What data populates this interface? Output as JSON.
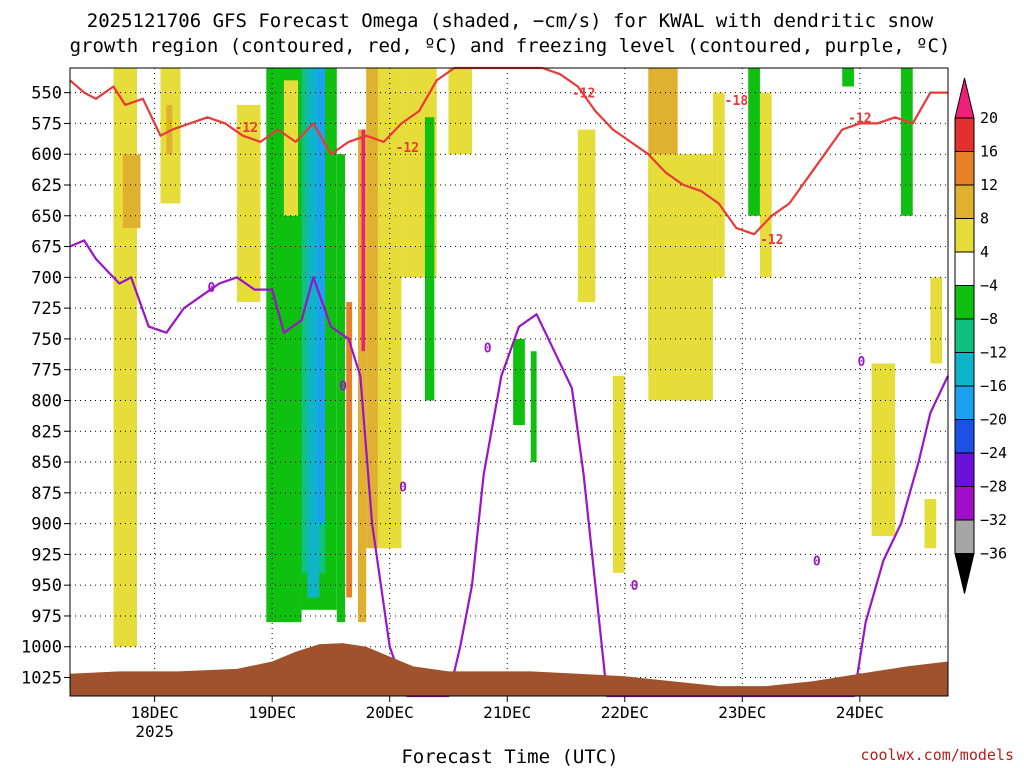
{
  "chart_data": {
    "type": "heatmap",
    "title_line1": "2025121706 GFS Forecast Omega (shaded, −cm/s) for KWAL with dendritic snow",
    "title_line2": "growth region (contoured, red, ºC) and freezing level (contoured, purple, ºC)",
    "xlabel": "Forecast Time (UTC)",
    "watermark": "coolwx.com/models",
    "x_axis": {
      "unit": "days since 2025-12-18 00Z",
      "range": [
        -0.72,
        6.75
      ],
      "ticks": [
        {
          "x": 0,
          "label": "18DEC",
          "sublabel": "2025"
        },
        {
          "x": 1,
          "label": "19DEC",
          "sublabel": ""
        },
        {
          "x": 2,
          "label": "20DEC",
          "sublabel": ""
        },
        {
          "x": 3,
          "label": "21DEC",
          "sublabel": ""
        },
        {
          "x": 4,
          "label": "22DEC",
          "sublabel": ""
        },
        {
          "x": 5,
          "label": "23DEC",
          "sublabel": ""
        },
        {
          "x": 6,
          "label": "24DEC",
          "sublabel": ""
        }
      ]
    },
    "y_axis": {
      "unit": "hPa",
      "range": [
        530,
        1040
      ],
      "ticks": [
        550,
        575,
        600,
        625,
        650,
        675,
        700,
        725,
        750,
        775,
        800,
        825,
        850,
        875,
        900,
        925,
        950,
        975,
        1000,
        1025
      ]
    },
    "colorbar": {
      "labels": [
        "20",
        "16",
        "12",
        "8",
        "4",
        "−4",
        "−8",
        "−12",
        "−16",
        "−20",
        "−24",
        "−28",
        "−32",
        "−36"
      ],
      "colors": [
        "#f0207a",
        "#e03030",
        "#e8802a",
        "#e0b030",
        "#e6dc3a",
        "#ffffff",
        "#10c010",
        "#10c080",
        "#10b4c8",
        "#1ca0f0",
        "#1e50e6",
        "#6a10d8",
        "#a010c8",
        "#a6a6a6",
        "#000000"
      ]
    },
    "shaded_regions": [
      {
        "x": [
          -0.35,
          -0.15
        ],
        "p": [
          530,
          1000
        ],
        "level": "4"
      },
      {
        "x": [
          -0.27,
          -0.12
        ],
        "p": [
          600,
          660
        ],
        "level": "8"
      },
      {
        "x": [
          0.05,
          0.22
        ],
        "p": [
          530,
          640
        ],
        "level": "4"
      },
      {
        "x": [
          0.1,
          0.15
        ],
        "p": [
          560,
          600
        ],
        "level": "8"
      },
      {
        "x": [
          0.7,
          0.9
        ],
        "p": [
          560,
          720
        ],
        "level": "4"
      },
      {
        "x": [
          0.95,
          1.25
        ],
        "p": [
          530,
          980
        ],
        "level": "-8"
      },
      {
        "x": [
          1.1,
          1.22
        ],
        "p": [
          540,
          650
        ],
        "level": "4"
      },
      {
        "x": [
          1.25,
          1.55
        ],
        "p": [
          530,
          970
        ],
        "level": "-8"
      },
      {
        "x": [
          1.25,
          1.45
        ],
        "p": [
          530,
          940
        ],
        "level": "-12"
      },
      {
        "x": [
          1.3,
          1.4
        ],
        "p": [
          530,
          960
        ],
        "level": "-16"
      },
      {
        "x": [
          1.38,
          1.45
        ],
        "p": [
          530,
          900
        ],
        "level": "-20"
      },
      {
        "x": [
          1.55,
          1.62
        ],
        "p": [
          600,
          980
        ],
        "level": "-8"
      },
      {
        "x": [
          1.63,
          1.68
        ],
        "p": [
          720,
          960
        ],
        "level": "12"
      },
      {
        "x": [
          1.73,
          1.8
        ],
        "p": [
          580,
          980
        ],
        "level": "8"
      },
      {
        "x": [
          1.76,
          1.79
        ],
        "p": [
          580,
          760
        ],
        "level": "20"
      },
      {
        "x": [
          1.8,
          1.9
        ],
        "p": [
          530,
          920
        ],
        "level": "8"
      },
      {
        "x": [
          1.9,
          2.1
        ],
        "p": [
          530,
          920
        ],
        "level": "4"
      },
      {
        "x": [
          2.1,
          2.4
        ],
        "p": [
          530,
          700
        ],
        "level": "4"
      },
      {
        "x": [
          2.3,
          2.38
        ],
        "p": [
          570,
          800
        ],
        "level": "-8"
      },
      {
        "x": [
          2.5,
          2.7
        ],
        "p": [
          530,
          600
        ],
        "level": "4"
      },
      {
        "x": [
          3.05,
          3.15
        ],
        "p": [
          750,
          820
        ],
        "level": "-8"
      },
      {
        "x": [
          3.2,
          3.25
        ],
        "p": [
          760,
          850
        ],
        "level": "-8"
      },
      {
        "x": [
          3.6,
          3.75
        ],
        "p": [
          580,
          720
        ],
        "level": "4"
      },
      {
        "x": [
          3.9,
          4.0
        ],
        "p": [
          780,
          940
        ],
        "level": "4"
      },
      {
        "x": [
          4.2,
          4.45
        ],
        "p": [
          530,
          780
        ],
        "level": "8"
      },
      {
        "x": [
          4.2,
          4.75
        ],
        "p": [
          600,
          800
        ],
        "level": "4"
      },
      {
        "x": [
          4.4,
          4.65
        ],
        "p": [
          690,
          800
        ],
        "level": "4"
      },
      {
        "x": [
          4.75,
          4.85
        ],
        "p": [
          550,
          700
        ],
        "level": "4"
      },
      {
        "x": [
          5.05,
          5.15
        ],
        "p": [
          530,
          650
        ],
        "level": "-8"
      },
      {
        "x": [
          5.15,
          5.25
        ],
        "p": [
          550,
          700
        ],
        "level": "4"
      },
      {
        "x": [
          5.85,
          5.95
        ],
        "p": [
          530,
          545
        ],
        "level": "-8"
      },
      {
        "x": [
          6.1,
          6.3
        ],
        "p": [
          770,
          910
        ],
        "level": "4"
      },
      {
        "x": [
          6.35,
          6.45
        ],
        "p": [
          530,
          650
        ],
        "level": "-8"
      },
      {
        "x": [
          6.6,
          6.7
        ],
        "p": [
          700,
          770
        ],
        "level": "4"
      },
      {
        "x": [
          6.55,
          6.65
        ],
        "p": [
          880,
          920
        ],
        "level": "4"
      }
    ],
    "red_contour_dgz": {
      "label": "-12",
      "x": [
        -0.72,
        -0.6,
        -0.5,
        -0.35,
        -0.25,
        -0.1,
        0.05,
        0.15,
        0.3,
        0.45,
        0.6,
        0.75,
        0.9,
        1.05,
        1.2,
        1.35,
        1.5,
        1.65,
        1.8,
        1.95,
        2.1,
        2.25,
        2.4,
        2.55,
        2.7,
        2.85,
        3.0,
        3.15,
        3.3,
        3.45,
        3.6,
        3.75,
        3.9,
        4.05,
        4.2,
        4.35,
        4.5,
        4.65,
        4.8,
        4.95,
        5.1,
        5.25,
        5.4,
        5.55,
        5.7,
        5.85,
        6.0,
        6.15,
        6.3,
        6.45,
        6.6,
        6.75
      ],
      "p": [
        540,
        550,
        555,
        545,
        560,
        555,
        585,
        580,
        575,
        570,
        575,
        585,
        590,
        580,
        590,
        575,
        600,
        590,
        585,
        590,
        575,
        565,
        540,
        530,
        530,
        530,
        530,
        530,
        530,
        535,
        545,
        565,
        580,
        590,
        600,
        615,
        625,
        630,
        640,
        660,
        665,
        650,
        640,
        620,
        600,
        580,
        575,
        575,
        570,
        575,
        550,
        550
      ],
      "labels_at": [
        {
          "x": 0.68,
          "p": 578,
          "text": "-12"
        },
        {
          "x": 2.05,
          "p": 594,
          "text": "-12"
        },
        {
          "x": 3.55,
          "p": 550,
          "text": "-12"
        },
        {
          "x": 4.85,
          "p": 556,
          "text": "-18"
        },
        {
          "x": 5.15,
          "p": 669,
          "text": "-12"
        },
        {
          "x": 5.9,
          "p": 570,
          "text": "-12"
        }
      ]
    },
    "purple_contour_freezing": {
      "label": "0",
      "x": [
        -0.72,
        -0.6,
        -0.5,
        -0.4,
        -0.3,
        -0.2,
        -0.05,
        0.1,
        0.25,
        0.4,
        0.55,
        0.7,
        0.85,
        1.0,
        1.1,
        1.25,
        1.35,
        1.5,
        1.65,
        1.75,
        1.85,
        2.0,
        2.15,
        2.3,
        2.4,
        2.5,
        2.6,
        2.7,
        2.8,
        2.95,
        3.1,
        3.25,
        3.4,
        3.55,
        3.65,
        3.75,
        3.85,
        3.95,
        4.1,
        4.25,
        4.4,
        4.55,
        4.7,
        4.85,
        5.0,
        5.15,
        5.3,
        5.45,
        5.6,
        5.75,
        5.85,
        5.95,
        6.05,
        6.2,
        6.35,
        6.5,
        6.6,
        6.75
      ],
      "p": [
        675,
        670,
        685,
        695,
        705,
        700,
        740,
        745,
        725,
        715,
        705,
        700,
        710,
        710,
        745,
        735,
        700,
        740,
        750,
        780,
        900,
        1000,
        1040,
        1040,
        1040,
        1040,
        1000,
        950,
        860,
        780,
        740,
        730,
        760,
        790,
        860,
        950,
        1040,
        1040,
        1040,
        1040,
        1040,
        1040,
        1040,
        1040,
        1040,
        1040,
        1040,
        1040,
        1040,
        1040,
        1040,
        1040,
        980,
        930,
        900,
        850,
        810,
        780
      ],
      "labels_at": [
        {
          "x": 0.45,
          "p": 708,
          "text": "0"
        },
        {
          "x": 1.57,
          "p": 788,
          "text": "0"
        },
        {
          "x": 2.08,
          "p": 870,
          "text": "0"
        },
        {
          "x": 2.8,
          "p": 757,
          "text": "0"
        },
        {
          "x": 4.05,
          "p": 950,
          "text": "0"
        },
        {
          "x": 5.6,
          "p": 930,
          "text": "0"
        },
        {
          "x": 5.98,
          "p": 768,
          "text": "0"
        }
      ]
    },
    "terrain": {
      "x": [
        -0.72,
        -0.3,
        0.2,
        0.7,
        1.0,
        1.2,
        1.4,
        1.6,
        1.8,
        2.0,
        2.2,
        2.5,
        2.8,
        3.2,
        3.6,
        4.0,
        4.4,
        4.8,
        5.2,
        5.6,
        6.0,
        6.4,
        6.75
      ],
      "p": [
        1022,
        1020,
        1020,
        1018,
        1012,
        1004,
        998,
        997,
        1000,
        1008,
        1016,
        1020,
        1020,
        1020,
        1022,
        1024,
        1028,
        1032,
        1032,
        1028,
        1022,
        1016,
        1012
      ]
    }
  }
}
